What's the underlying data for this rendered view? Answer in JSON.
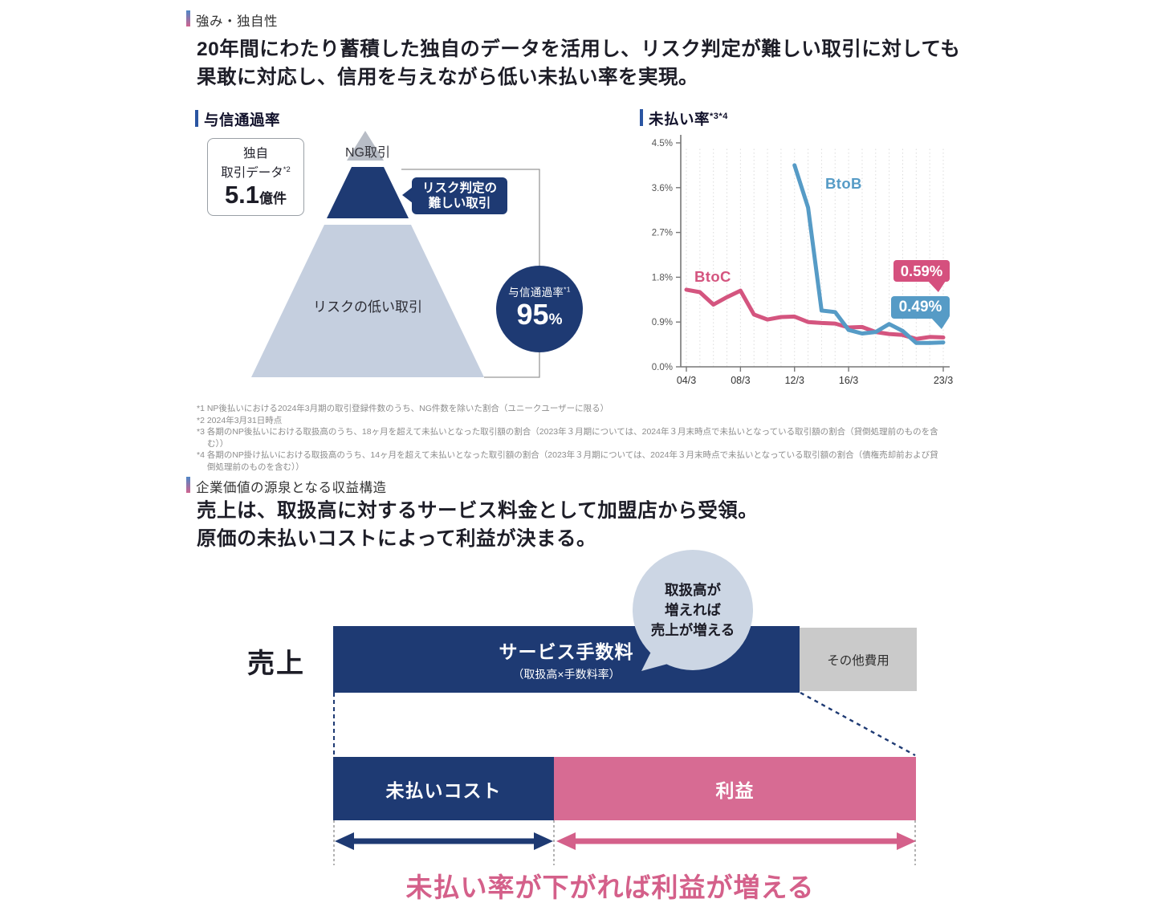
{
  "section1": {
    "label": "強み・独自性",
    "lead_line1": "20年間にわたり蓄積した独自のデータを活用し、リスク判定が難しい取引に対しても",
    "lead_line2": "果敢に対応し、信用を与えながら低い未払い率を実現。",
    "credit_chart": {
      "title": "与信通過率",
      "data_box": {
        "line1": "独自",
        "line2": "取引データ",
        "line2_sup": "*2",
        "value": "5.1",
        "unit": "億件"
      },
      "pyramid": {
        "top_label": "NG取引",
        "callout_line1": "リスク判定の",
        "callout_line2": "難しい取引",
        "bottom_label": "リスクの低い取引"
      },
      "result_circle": {
        "label": "与信通過率",
        "label_sup": "*1",
        "value": "95",
        "unit": "%"
      }
    },
    "unpaid_chart": {
      "title": "未払い率",
      "title_sup": "*3*4"
    },
    "footnotes": [
      "*1 NP後払いにおける2024年3月期の取引登録件数のうち、NG件数を除いた割合（ユニークユーザーに限る）",
      "*2 2024年3月31日時点",
      "*3 各期のNP後払いにおける取扱高のうち、18ヶ月を超えて未払いとなった取引額の割合（2023年３月期については、2024年３月末時点で未払いとなっている取引額の割合（貸倒処理前のものを含む））",
      "*4 各期のNP掛け払いにおける取扱高のうち、14ヶ月を超えて未払いとなった取引額の割合（2023年３月期については、2024年３月末時点で未払いとなっている取引額の割合（債権売却前および貸倒処理前のものを含む））"
    ]
  },
  "section2": {
    "label": "企業価値の源泉となる収益構造",
    "lead_line1": "売上は、取扱高に対するサービス料金として加盟店から受領。",
    "lead_line2": "原価の未払いコストによって利益が決まる。",
    "diagram": {
      "revenue_label": "売上",
      "service_fee_label": "サービス手数料",
      "service_fee_sub": "（取扱高×手数料率）",
      "other_cost_label": "その他費用",
      "bubble_line1": "取扱高が",
      "bubble_line2": "増えれば",
      "bubble_line3": "売上が増える",
      "unpaid_cost_label": "未払いコスト",
      "profit_label": "利益",
      "bottom_message": "未払い率が下がれば利益が増える"
    }
  },
  "chart_data": {
    "type": "line",
    "title": "未払い率*3*4",
    "x_years": [
      2004,
      2005,
      2006,
      2007,
      2008,
      2009,
      2010,
      2011,
      2012,
      2013,
      2014,
      2015,
      2016,
      2017,
      2018,
      2019,
      2020,
      2021,
      2022,
      2023
    ],
    "series": [
      {
        "name": "BtoC",
        "color": "#d4557f",
        "values": [
          1.55,
          1.5,
          1.25,
          1.4,
          1.53,
          1.05,
          0.95,
          1.0,
          1.01,
          0.9,
          0.88,
          0.87,
          0.79,
          0.8,
          0.7,
          0.66,
          0.64,
          0.56,
          0.6,
          0.59
        ]
      },
      {
        "name": "BtoB",
        "color": "#569bc6",
        "values": [
          null,
          null,
          null,
          null,
          null,
          null,
          null,
          null,
          4.05,
          3.2,
          1.13,
          1.1,
          0.74,
          0.67,
          0.7,
          0.86,
          0.72,
          0.48,
          0.48,
          0.49
        ]
      }
    ],
    "end_labels": [
      {
        "series": "BtoC",
        "text": "0.59%"
      },
      {
        "series": "BtoB",
        "text": "0.49%"
      }
    ],
    "ylim": [
      0,
      4.5
    ],
    "yticks": [
      {
        "value": 0.0,
        "label": "0.0%"
      },
      {
        "value": 0.9,
        "label": "0.9%"
      },
      {
        "value": 1.8,
        "label": "1.8%"
      },
      {
        "value": 2.7,
        "label": "2.7%"
      },
      {
        "value": 3.6,
        "label": "3.6%"
      },
      {
        "value": 4.5,
        "label": "4.5%"
      }
    ],
    "xticks": [
      {
        "year": 2004,
        "label": "04/3"
      },
      {
        "year": 2008,
        "label": "08/3"
      },
      {
        "year": 2012,
        "label": "12/3"
      },
      {
        "year": 2016,
        "label": "16/3"
      },
      {
        "year": 2023,
        "label": "23/3"
      }
    ],
    "grid": "vertical-dotted-per-year",
    "legend_position": "inline-labels"
  },
  "colors": {
    "navy": "#1e3a73",
    "pink": "#d4557f",
    "pink_bar": "#d76b93",
    "blue": "#569bc6",
    "pyramid_light": "#c5cfdf",
    "pyramid_gray_cap": "#b8bdc6",
    "other_cost_gray": "#cacaca",
    "bubble_fill": "#ccd6e4",
    "accent_gradient_top": "#4e87c6",
    "accent_gradient_bottom": "#d0648f",
    "subtitle_bar_blue": "#2a55a2"
  }
}
